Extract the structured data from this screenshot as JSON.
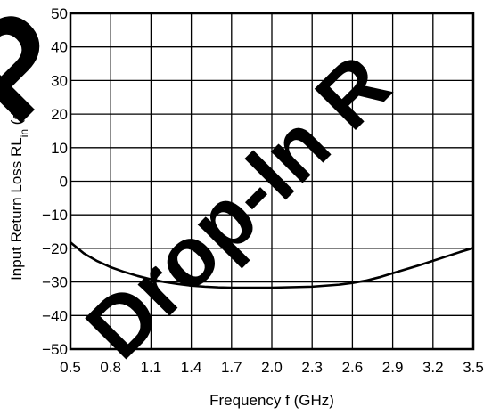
{
  "watermark": {
    "text": "Drop-In R",
    "prefix": "P",
    "color": "#e02020",
    "prefix_color": "#cccccc"
  },
  "chart_data": {
    "type": "line",
    "title": "",
    "xlabel": "Frequency  f (GHz)",
    "ylabel": "Input Return Loss  RLin (dB)",
    "xlim": [
      0.5,
      3.5
    ],
    "ylim": [
      -50,
      50
    ],
    "x_ticks": [
      0.5,
      0.8,
      1.1,
      1.4,
      1.7,
      2.0,
      2.3,
      2.6,
      2.9,
      3.2,
      3.5
    ],
    "x_tick_labels": [
      "0.5",
      "0.8",
      "1.1",
      "1.4",
      "1.7",
      "2.0",
      "2.3",
      "2.6",
      "2.9",
      "3.2",
      "3.5"
    ],
    "y_ticks": [
      50,
      40,
      30,
      20,
      10,
      0,
      -10,
      -20,
      -30,
      -40,
      -50
    ],
    "y_tick_labels": [
      "50",
      "40",
      "30",
      "20",
      "10",
      "0",
      "−10",
      "−20",
      "−30",
      "−40",
      "−50"
    ],
    "grid": true,
    "legend": "none",
    "line_color": "#000000",
    "series": [
      {
        "x": [
          0.5,
          0.6,
          0.7,
          0.8,
          0.9,
          1.0,
          1.1,
          1.2,
          1.3,
          1.4,
          1.5,
          1.6,
          1.7,
          1.8,
          1.9,
          2.0,
          2.1,
          2.2,
          2.3,
          2.4,
          2.5,
          2.6,
          2.7,
          2.8,
          2.9,
          3.0,
          3.1,
          3.2,
          3.3,
          3.4,
          3.5
        ],
        "y": [
          -18.2,
          -21.5,
          -23.8,
          -25.6,
          -27.0,
          -28.2,
          -29.2,
          -30.0,
          -30.6,
          -31.1,
          -31.4,
          -31.6,
          -31.7,
          -31.7,
          -31.7,
          -31.7,
          -31.6,
          -31.5,
          -31.4,
          -31.1,
          -30.8,
          -30.3,
          -29.6,
          -28.6,
          -27.4,
          -26.2,
          -25.0,
          -23.7,
          -22.4,
          -21.1,
          -19.9
        ]
      }
    ]
  }
}
